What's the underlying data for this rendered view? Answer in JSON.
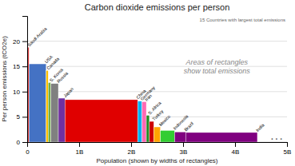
{
  "chart_data": {
    "type": "variwide",
    "title": "Carbon dioxide emissions per person",
    "subtitle": "15 Countries with largest total emissions",
    "xlabel": "Population (shown by widths of rectangles)",
    "ylabel": "Per person emissions (tCO2e)",
    "annotations": [
      {
        "text": "Areas of rectangles\nshow total emissions"
      },
      {
        "text": ". . .",
        "x": 4800,
        "y": 1.0
      }
    ],
    "categories": [
      "Saudi Arabia",
      "USA",
      "Canada",
      "S. Korea",
      "Russia",
      "Japan",
      "China",
      "Germany",
      "Iran",
      "S. Africa",
      "Turkey",
      "Mexico",
      "Indonesia",
      "Brazil",
      "India"
    ],
    "values": [
      18.8,
      15.5,
      14.2,
      11.8,
      11.6,
      8.7,
      8.4,
      8.1,
      8.0,
      5.3,
      4.1,
      3.0,
      2.3,
      2.0,
      1.9
    ],
    "population": [
      35,
      331,
      38,
      52,
      144,
      126,
      1400,
      83,
      84,
      59,
      84,
      128,
      273,
      213,
      1380
    ],
    "colors": [
      "#e04040",
      "#4472c4",
      "#ffc000",
      "#70ad47",
      "#808080",
      "#7030a0",
      "#e00000",
      "#00b0f0",
      "#ff69b4",
      "#228b22",
      "#cc0000",
      "#ffa500",
      "#32cd32",
      "#800080",
      "#800080"
    ],
    "xlim": [
      0,
      5000
    ],
    "ylim": [
      0,
      25
    ],
    "xticks": [
      0,
      {
        "value": 1000,
        "label": "1B"
      },
      {
        "value": 2000,
        "label": "2B"
      },
      {
        "value": 3000,
        "label": "3B"
      },
      {
        "value": 4000,
        "label": "4B"
      },
      {
        "value": 5000,
        "label": "5B"
      }
    ],
    "yticks": [
      0,
      5,
      10,
      15,
      20
    ],
    "grid": true
  }
}
